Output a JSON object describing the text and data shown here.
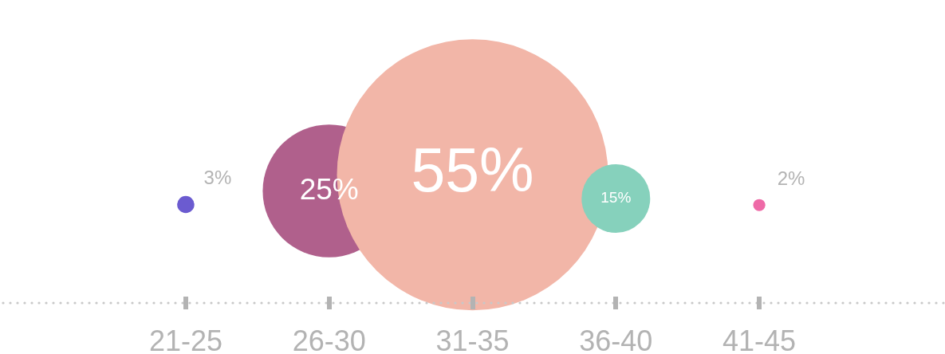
{
  "chart_data": {
    "type": "bubble",
    "categories": [
      "21-25",
      "26-30",
      "31-35",
      "36-40",
      "41-45"
    ],
    "values": [
      3,
      25,
      55,
      15,
      2
    ],
    "sizes": [
      0.004,
      0.24,
      1,
      0.064,
      0.002
    ],
    "value_labels": [
      "3%",
      "25%",
      "55%",
      "15%",
      "2%"
    ],
    "colors": [
      "#6b5bd0",
      "#b0608c",
      "#f2b6a8",
      "#86d1bc",
      "#ee6aa7"
    ]
  }
}
